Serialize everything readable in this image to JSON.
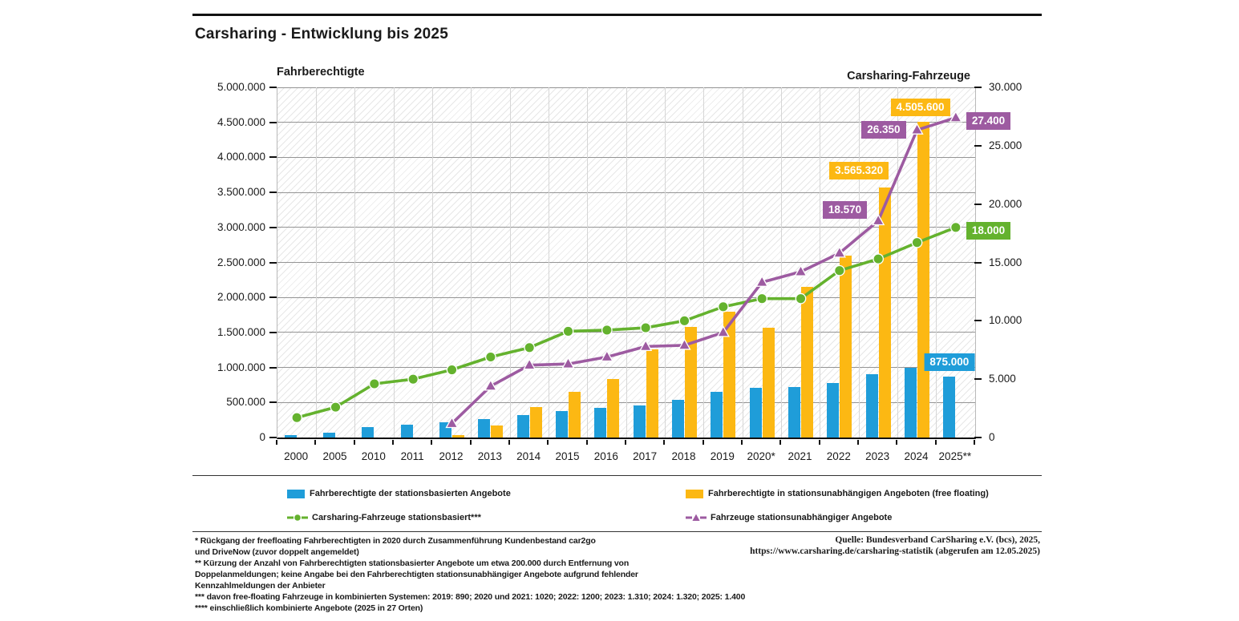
{
  "title": "Carsharing - Entwicklung bis 2025",
  "left_axis": {
    "title": "Fahrberechtigte",
    "max": 5000000,
    "step": 500000,
    "tick_labels": [
      "0",
      "500.000",
      "1.000.000",
      "1.500.000",
      "2.000.000",
      "2.500.000",
      "3.000.000",
      "3.500.000",
      "4.000.000",
      "4.500.000",
      "5.000.000"
    ]
  },
  "right_axis": {
    "title": "Carsharing-Fahrzeuge",
    "max": 30000,
    "step": 5000,
    "tick_labels": [
      "0",
      "5.000",
      "10.000",
      "15.000",
      "20.000",
      "25.000",
      "30.000"
    ]
  },
  "chart_data": {
    "type": "combo bar+line, dual axis",
    "categories": [
      "2000",
      "2005",
      "2010",
      "2011",
      "2012",
      "2013",
      "2014",
      "2015",
      "2016",
      "2017",
      "2018",
      "2019",
      "2020*",
      "2021",
      "2022",
      "2023",
      "2024",
      "2025**"
    ],
    "ylim_left": [
      0,
      5000000
    ],
    "ylim_right": [
      0,
      30000
    ],
    "grid": true,
    "legend_position": "bottom",
    "series": [
      {
        "id": "users_station",
        "name": "Fahrberechtigte der stationsbasierten Angebote",
        "type": "bar",
        "axis": "left",
        "color": "#1f9dd9",
        "values": [
          40000,
          70000,
          150000,
          185000,
          220000,
          260000,
          320000,
          375000,
          425000,
          455000,
          535000,
          650000,
          710000,
          720000,
          780000,
          900000,
          1000000,
          875000
        ]
      },
      {
        "id": "users_ff",
        "name": "Fahrberechtigte in stationsunabhängigen Angeboten (free floating)",
        "type": "bar",
        "axis": "left",
        "color": "#fcb813",
        "values": [
          null,
          null,
          null,
          null,
          40000,
          170000,
          430000,
          650000,
          830000,
          1260000,
          1580000,
          1800000,
          1570000,
          2150000,
          2600000,
          3565320,
          4505600,
          null
        ]
      },
      {
        "id": "veh_station",
        "name": "Carsharing-Fahrzeuge stationsbasiert***",
        "type": "line",
        "marker": "circle",
        "axis": "right",
        "color": "#64b22e",
        "values": [
          1700,
          2600,
          4600,
          5000,
          5800,
          6900,
          7700,
          9100,
          9200,
          9400,
          10000,
          11200,
          11900,
          11900,
          14300,
          15300,
          16700,
          18000
        ]
      },
      {
        "id": "veh_ff",
        "name": "Fahrzeuge stationsunabhängiger Angebote",
        "type": "line",
        "marker": "triangle",
        "axis": "right",
        "color": "#9d5ba1",
        "values": [
          null,
          null,
          null,
          null,
          1200,
          4400,
          6200,
          6300,
          6900,
          7800,
          7900,
          9000,
          13300,
          14200,
          15800,
          18570,
          26350,
          27400
        ]
      }
    ],
    "point_labels": [
      {
        "series": "users_ff",
        "category": "2023",
        "text": "3.565.320",
        "placement": "above-left"
      },
      {
        "series": "users_ff",
        "category": "2024",
        "text": "4.505.600",
        "placement": "above",
        "dx": -4
      },
      {
        "series": "users_station",
        "category": "2025**",
        "text": "875.000",
        "placement": "above"
      },
      {
        "series": "veh_ff",
        "category": "2023",
        "text": "18.570",
        "placement": "left",
        "dy": -13
      },
      {
        "series": "veh_ff",
        "category": "2024",
        "text": "26.350",
        "placement": "left"
      },
      {
        "series": "veh_ff",
        "category": "2025**",
        "text": "27.400",
        "placement": "right",
        "dy": 4
      },
      {
        "series": "veh_station",
        "category": "2025**",
        "text": "18.000",
        "placement": "right",
        "dy": 4
      }
    ]
  },
  "footnotes": [
    "* Rückgang der freefloating Fahrberechtigten in 2020 durch Zusammenführung Kundenbestand car2go",
    "und DriveNow (zuvor doppelt angemeldet)",
    "** Kürzung der Anzahl von Fahrberechtigten stationsbasierter Angebote um etwa 200.000 durch Entfernung von",
    "Doppelanmeldungen; keine Angabe bei den Fahrberechtigten stationsunabhängiger Angebote aufgrund fehlender",
    "Kennzahlmeldungen der Anbieter",
    "*** davon free-floating Fahrzeuge in kombinierten Systemen: 2019: 890; 2020 und 2021: 1020; 2022: 1200; 2023: 1.310; 2024: 1.320; 2025: 1.400",
    "**** einschließlich kombinierte Angebote (2025 in 27 Orten)"
  ],
  "source": [
    "Quelle: Bundesverband CarSharing e.V. (bcs), 2025,",
    "https://www.carsharing.de/carsharing-statistik (abgerufen am 12.05.2025)"
  ]
}
